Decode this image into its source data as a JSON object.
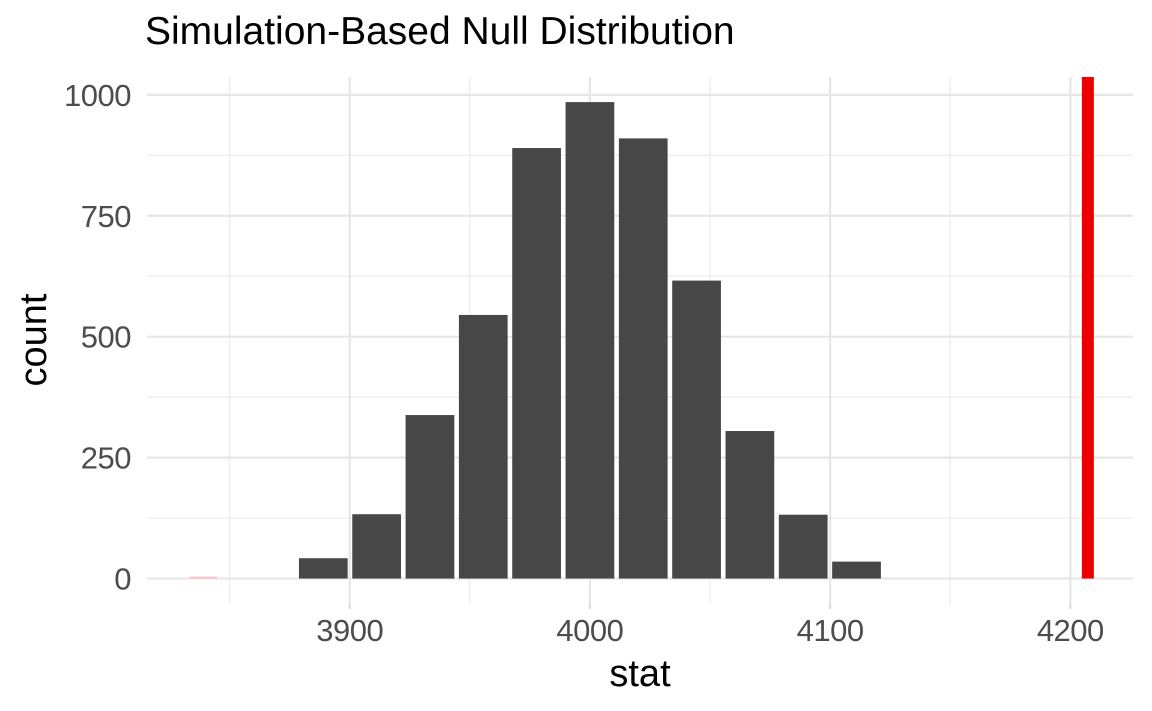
{
  "title": "Simulation-Based Null Distribution",
  "x_axis_label": "stat",
  "y_axis_label": "count",
  "colors": {
    "background": "#FFFFFF",
    "bar_fill": "#474747",
    "observed_line": "#EC0000",
    "shaded_bin_fill": "#FFC0CB",
    "grid_major": "#E6E6E6",
    "grid_minor": "#EDEDED",
    "axis_tick": "#DCDCDC",
    "tick_label_text": "#4D4D4D",
    "title_text": "#000000"
  },
  "chart_data": {
    "type": "bar",
    "subtype": "histogram",
    "title": "Simulation-Based Null Distribution",
    "xlabel": "stat",
    "ylabel": "count",
    "bin_width": 22.2,
    "bin_centers": [
      3889.0,
      3911.2,
      3933.4,
      3955.6,
      3977.8,
      4000.0,
      4022.2,
      4044.4,
      4066.6,
      4088.8,
      4111.0
    ],
    "counts": [
      42,
      133,
      338,
      545,
      890,
      985,
      910,
      616,
      305,
      132,
      35
    ],
    "shaded_bin": {
      "x_from": 3833.5,
      "x_to": 3844.7,
      "count": 4,
      "meaning": "tiny pink-shaded left-tail bin"
    },
    "observed_stat_line": {
      "x": 4207.3,
      "from_count": 0,
      "to": "panel-top"
    },
    "x_ticks": [
      3900,
      4000,
      4100,
      4200
    ],
    "x_minor_gridlines": [
      3850,
      3950,
      4050,
      4150
    ],
    "y_ticks": [
      0,
      250,
      500,
      750,
      1000
    ],
    "y_minor_gridlines": [
      125,
      375,
      625,
      875
    ],
    "xlim": [
      3815.6,
      4226.1
    ],
    "ylim": [
      -51.8,
      1036.9
    ],
    "grid": "major+minor",
    "legend": "none"
  }
}
